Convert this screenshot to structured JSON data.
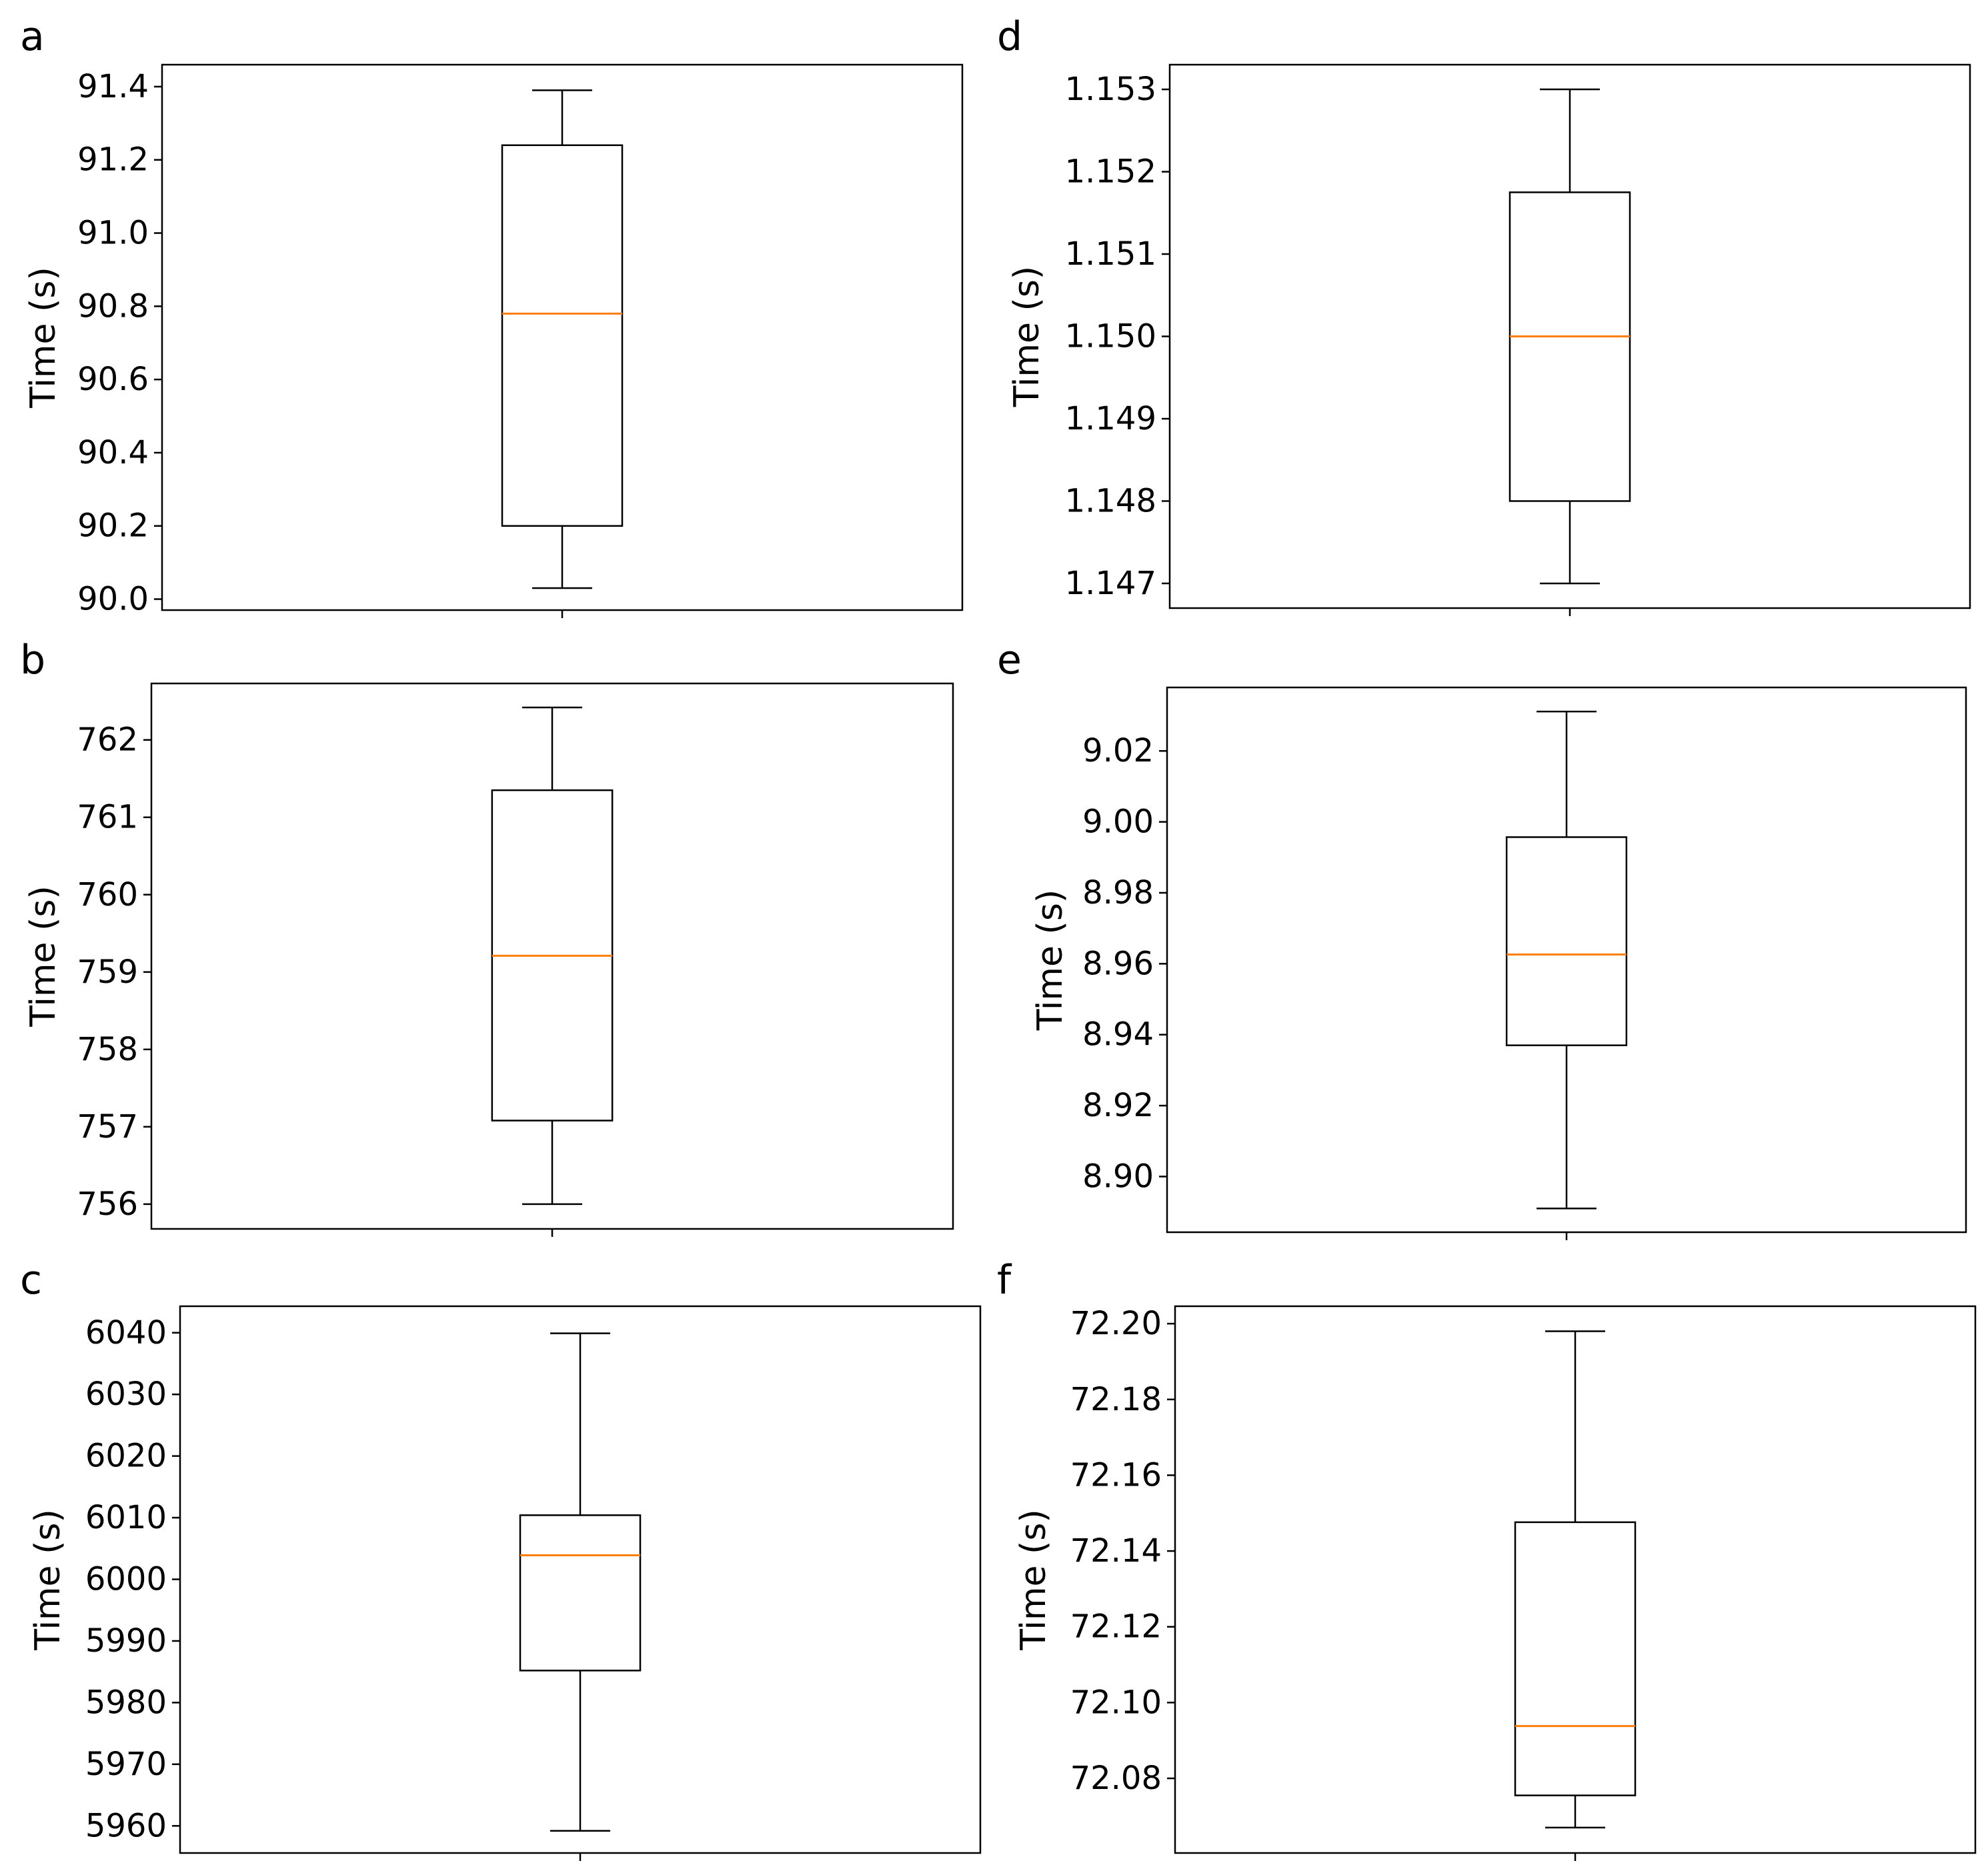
{
  "chart_data": [
    {
      "panel": "a",
      "type": "box",
      "ylabel": "Time (s)",
      "ylim": [
        89.97,
        91.46
      ],
      "yticks": [
        90.0,
        90.2,
        90.4,
        90.6,
        90.8,
        91.0,
        91.2,
        91.4
      ],
      "ytick_labels": [
        "90.0",
        "90.2",
        "90.4",
        "90.6",
        "90.8",
        "91.0",
        "91.2",
        "91.4"
      ],
      "box": {
        "whisker_low": 90.03,
        "q1": 90.2,
        "median": 90.78,
        "q3": 91.24,
        "whisker_high": 91.39
      },
      "colors": {
        "median": "#ff7f0e",
        "box": "#000000"
      }
    },
    {
      "panel": "b",
      "type": "box",
      "ylabel": "Time (s)",
      "ylim": [
        755.68,
        762.73
      ],
      "yticks": [
        756,
        757,
        758,
        759,
        760,
        761,
        762
      ],
      "ytick_labels": [
        "756",
        "757",
        "758",
        "759",
        "760",
        "761",
        "762"
      ],
      "box": {
        "whisker_low": 756.0,
        "q1": 757.08,
        "median": 759.21,
        "q3": 761.35,
        "whisker_high": 762.42
      },
      "colors": {
        "median": "#ff7f0e",
        "box": "#000000"
      }
    },
    {
      "panel": "c",
      "type": "box",
      "ylabel": "Time (s)",
      "ylim": [
        5955.6,
        6044.3
      ],
      "yticks": [
        5960,
        5970,
        5980,
        5990,
        6000,
        6010,
        6020,
        6030,
        6040
      ],
      "ytick_labels": [
        "5960",
        "5970",
        "5980",
        "5990",
        "6000",
        "6010",
        "6020",
        "6030",
        "6040"
      ],
      "box": {
        "whisker_low": 5959.2,
        "q1": 5985.2,
        "median": 6003.9,
        "q3": 6010.4,
        "whisker_high": 6039.9
      },
      "colors": {
        "median": "#ff7f0e",
        "box": "#000000"
      }
    },
    {
      "panel": "d",
      "type": "box",
      "ylabel": "Time (s)",
      "ylim": [
        1.1467,
        1.1533
      ],
      "yticks": [
        1.147,
        1.148,
        1.149,
        1.15,
        1.151,
        1.152,
        1.153
      ],
      "ytick_labels": [
        "1.147",
        "1.148",
        "1.149",
        "1.150",
        "1.151",
        "1.152",
        "1.153"
      ],
      "box": {
        "whisker_low": 1.147,
        "q1": 1.148,
        "median": 1.15,
        "q3": 1.15175,
        "whisker_high": 1.153
      },
      "colors": {
        "median": "#ff7f0e",
        "box": "#000000"
      }
    },
    {
      "panel": "e",
      "type": "box",
      "ylabel": "Time (s)",
      "ylim": [
        8.8843,
        9.0379
      ],
      "yticks": [
        8.9,
        8.92,
        8.94,
        8.96,
        8.98,
        9.0,
        9.02
      ],
      "ytick_labels": [
        "8.90",
        "8.92",
        "8.94",
        "8.96",
        "8.98",
        "9.00",
        "9.02"
      ],
      "box": {
        "whisker_low": 8.891,
        "q1": 8.937,
        "median": 8.9626,
        "q3": 8.9957,
        "whisker_high": 9.0311
      },
      "colors": {
        "median": "#ff7f0e",
        "box": "#000000"
      }
    },
    {
      "panel": "f",
      "type": "box",
      "ylabel": "Time (s)",
      "ylim": [
        72.0603,
        72.2046
      ],
      "yticks": [
        72.08,
        72.1,
        72.12,
        72.14,
        72.16,
        72.18,
        72.2
      ],
      "ytick_labels": [
        "72.08",
        "72.10",
        "72.12",
        "72.14",
        "72.16",
        "72.18",
        "72.20"
      ],
      "box": {
        "whisker_low": 72.067,
        "q1": 72.0755,
        "median": 72.0938,
        "q3": 72.1476,
        "whisker_high": 72.198
      },
      "colors": {
        "median": "#ff7f0e",
        "box": "#000000"
      }
    }
  ]
}
